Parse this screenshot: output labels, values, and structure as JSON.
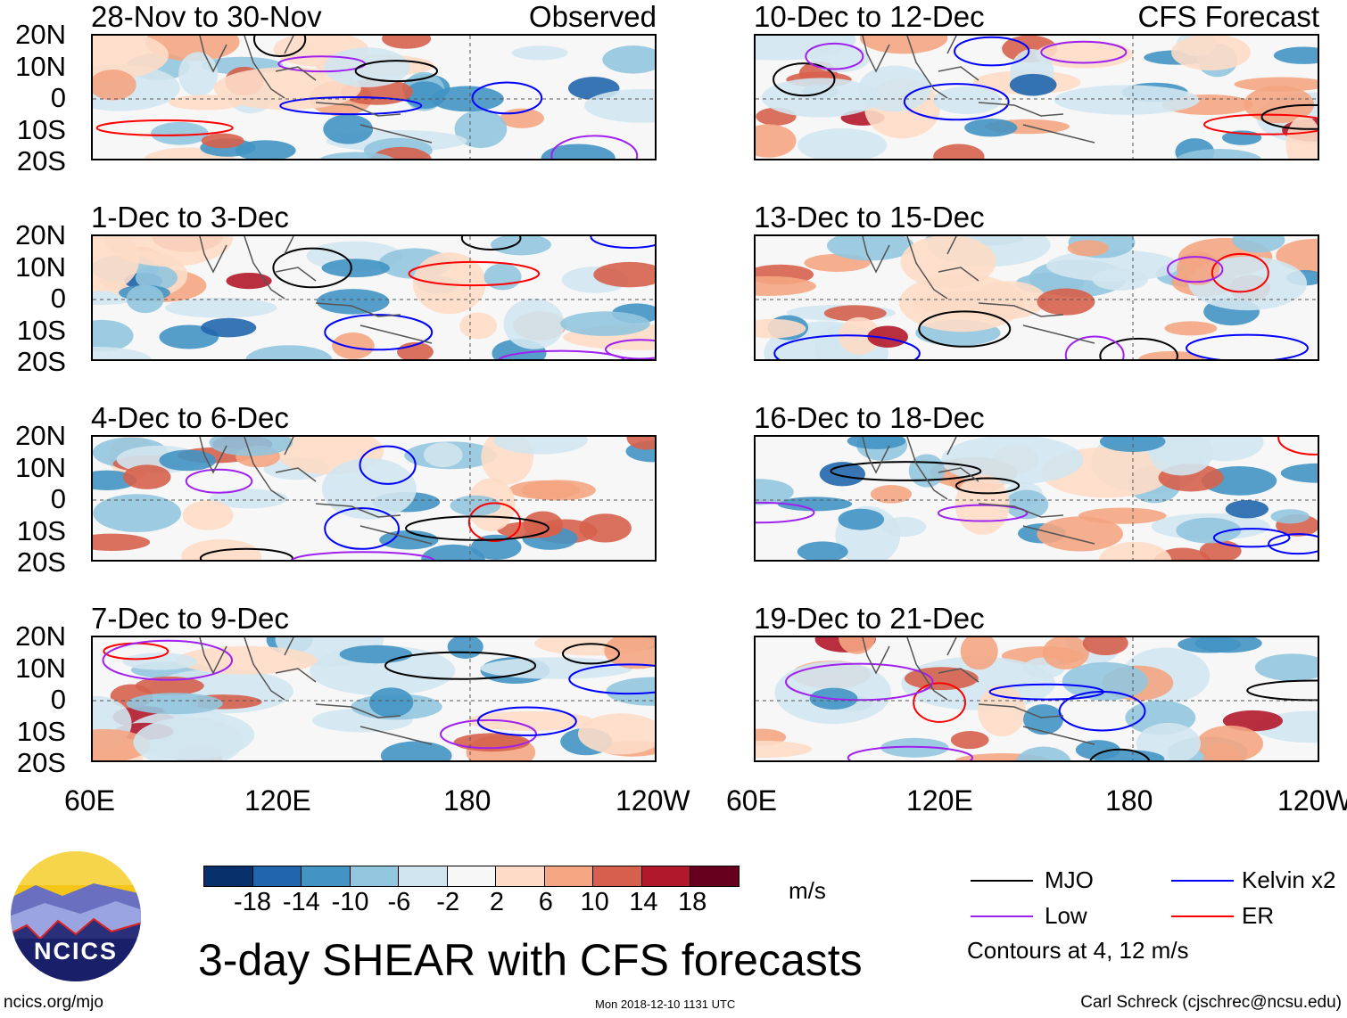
{
  "panels": [
    {
      "title": "28-Nov to 30-Nov",
      "right_label": "Observed"
    },
    {
      "title": "1-Dec to 3-Dec"
    },
    {
      "title": "4-Dec to 6-Dec"
    },
    {
      "title": "7-Dec to 9-Dec"
    },
    {
      "title": "10-Dec to 12-Dec",
      "right_label": "CFS Forecast"
    },
    {
      "title": "13-Dec to 15-Dec"
    },
    {
      "title": "16-Dec to 18-Dec"
    },
    {
      "title": "19-Dec to 21-Dec"
    }
  ],
  "lat_labels": [
    "20N",
    "10N",
    "0",
    "10S",
    "20S"
  ],
  "lon_labels": [
    "60E",
    "120E",
    "180",
    "120W"
  ],
  "colorbar": {
    "labels": [
      "-18",
      "-14",
      "-10",
      "-6",
      "-2",
      "2",
      "6",
      "10",
      "14",
      "18"
    ],
    "colors": [
      "#08306b",
      "#2166ac",
      "#4393c3",
      "#92c5de",
      "#d1e5f0",
      "#f7f7f7",
      "#fddbc7",
      "#f4a582",
      "#d6604d",
      "#b2182b",
      "#67001f"
    ],
    "units": "m/s"
  },
  "legend": {
    "items": [
      {
        "label": "MJO",
        "color": "#000000"
      },
      {
        "label": "Kelvin x2",
        "color": "#0000ff"
      },
      {
        "label": "Low",
        "color": "#a020f0"
      },
      {
        "label": "ER",
        "color": "#ff0000"
      }
    ],
    "note": "Contours at 4, 12 m/s"
  },
  "logo_text": "NCICS",
  "main_title": "3-day SHEAR with CFS forecasts",
  "footer": {
    "left": "ncics.org/mjo",
    "center": "Mon 2018-12-10 1131 UTC",
    "right": "Carl Schreck (cjschrec@ncsu.edu)"
  }
}
